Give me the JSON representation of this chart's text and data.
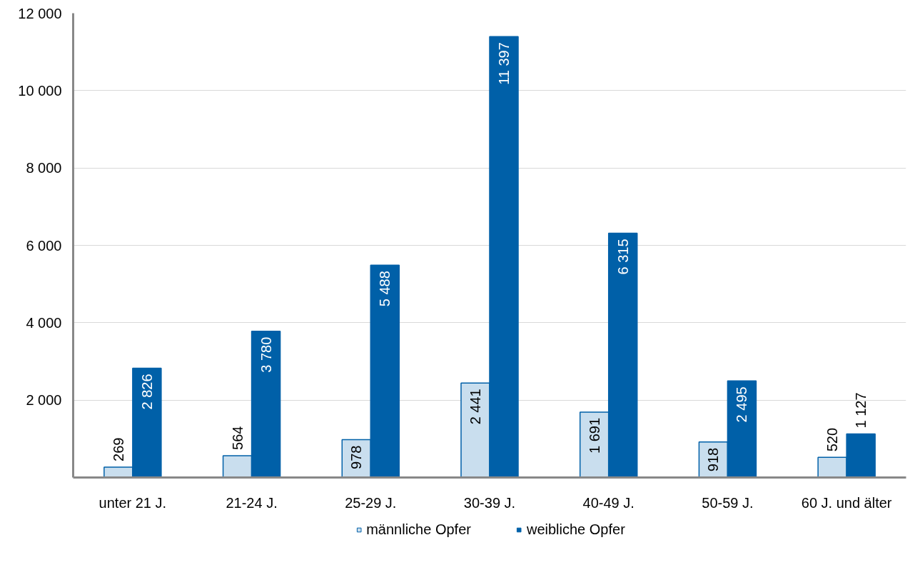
{
  "chart_data": {
    "type": "bar",
    "categories": [
      "unter 21 J.",
      "21-24 J.",
      "25-29 J.",
      "30-39 J.",
      "40-49 J.",
      "50-59 J.",
      "60 J. und älter"
    ],
    "series": [
      {
        "name": "männliche Opfer",
        "color": "#c9deee",
        "values": [
          269,
          564,
          978,
          2441,
          1691,
          918,
          520
        ],
        "value_labels": [
          "269",
          "564",
          "978",
          "2 441",
          "1 691",
          "918",
          "520"
        ]
      },
      {
        "name": "weibliche Opfer",
        "color": "#0060a8",
        "values": [
          2826,
          3780,
          5488,
          11397,
          6315,
          2495,
          1127
        ],
        "value_labels": [
          "2 826",
          "3 780",
          "5 488",
          "11 397",
          "6 315",
          "2 495",
          "1 127"
        ]
      }
    ],
    "ylim": [
      0,
      12000
    ],
    "yticks": [
      {
        "value": 0,
        "label": null
      },
      {
        "value": 2000,
        "label": "2 000"
      },
      {
        "value": 4000,
        "label": "4 000"
      },
      {
        "value": 6000,
        "label": "6 000"
      },
      {
        "value": 8000,
        "label": "8 000"
      },
      {
        "value": 10000,
        "label": "10 000"
      },
      {
        "value": 12000,
        "label": "12 000"
      }
    ],
    "grid": "y",
    "legend": "bottom"
  }
}
